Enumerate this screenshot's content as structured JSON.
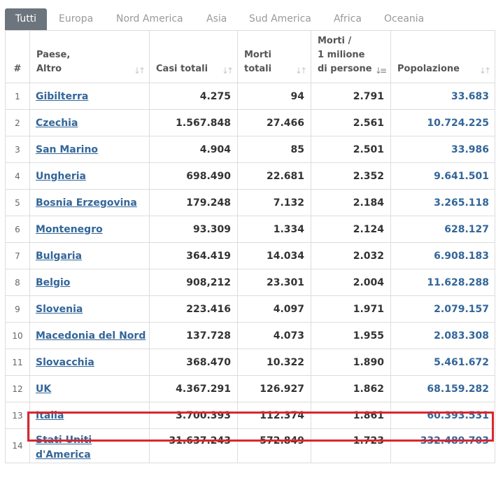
{
  "tabs": [
    "Tutti",
    "Europa",
    "Nord America",
    "Asia",
    "Sud America",
    "Africa",
    "Oceania"
  ],
  "columns": {
    "index": "#",
    "country_line1": "Paese,",
    "country_line2": "Altro",
    "cases": "Casi totali",
    "deaths_line1": "Morti",
    "deaths_line2": "totali",
    "dpm_line1": "Morti /",
    "dpm_line2": "1 milione",
    "dpm_line3": "di persone",
    "population": "Popolazione"
  },
  "rows": [
    {
      "idx": "1",
      "country": "Gibilterra",
      "cases": "4.275",
      "deaths": "94",
      "dpm": "2.791",
      "population": "33.683"
    },
    {
      "idx": "2",
      "country": "Czechia",
      "cases": "1.567.848",
      "deaths": "27.466",
      "dpm": "2.561",
      "population": "10.724.225"
    },
    {
      "idx": "3",
      "country": "San Marino",
      "cases": "4.904",
      "deaths": "85",
      "dpm": "2.501",
      "population": "33.986"
    },
    {
      "idx": "4",
      "country": "Ungheria",
      "cases": "698.490",
      "deaths": "22.681",
      "dpm": "2.352",
      "population": "9.641.501"
    },
    {
      "idx": "5",
      "country": "Bosnia Erzegovina",
      "cases": "179.248",
      "deaths": "7.132",
      "dpm": "2.184",
      "population": "3.265.118"
    },
    {
      "idx": "6",
      "country": "Montenegro",
      "cases": "93.309",
      "deaths": "1.334",
      "dpm": "2.124",
      "population": "628.127"
    },
    {
      "idx": "7",
      "country": "Bulgaria",
      "cases": "364.419",
      "deaths": "14.034",
      "dpm": "2.032",
      "population": "6.908.183"
    },
    {
      "idx": "8",
      "country": "Belgio",
      "cases": "908,212",
      "deaths": "23.301",
      "dpm": "2.004",
      "population": "11.628.288"
    },
    {
      "idx": "9",
      "country": "Slovenia",
      "cases": "223.416",
      "deaths": "4.097",
      "dpm": "1.971",
      "population": "2.079.157"
    },
    {
      "idx": "10",
      "country": "Macedonia del Nord",
      "cases": "137.728",
      "deaths": "4.073",
      "dpm": "1.955",
      "population": "2.083.308"
    },
    {
      "idx": "11",
      "country": "Slovacchia",
      "cases": "368.470",
      "deaths": "10.322",
      "dpm": "1.890",
      "population": "5.461.672"
    },
    {
      "idx": "12",
      "country": "UK",
      "cases": "4.367.291",
      "deaths": "126.927",
      "dpm": "1.862",
      "population": "68.159.282"
    },
    {
      "idx": "13",
      "country": "Italia",
      "cases": "3.700.393",
      "deaths": "112.374",
      "dpm": "1.861",
      "population": "60.393.531"
    },
    {
      "idx": "14",
      "country_line1": "Stati Uniti",
      "country_line2": "d'America",
      "cases": "31.637.243",
      "deaths": "572.849",
      "dpm": "1.723",
      "population": "332.489.703"
    }
  ],
  "colors": {
    "accent_link": "#336699",
    "highlight": "#d9262e",
    "active_tab": "#6c757d"
  },
  "icons": {
    "sort": "sort-arrows-icon",
    "sort_active": "sort-descending-icon"
  }
}
